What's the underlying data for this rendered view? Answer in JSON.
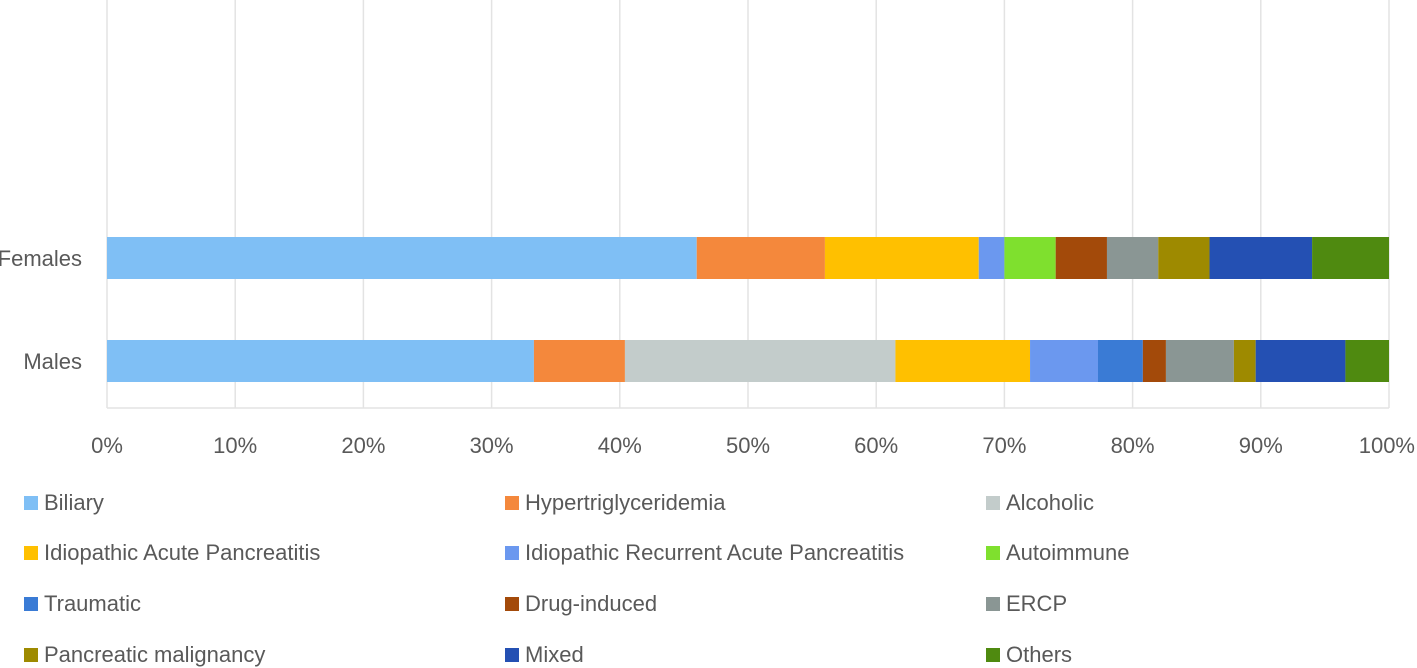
{
  "chart_data": {
    "type": "bar",
    "orientation": "horizontal",
    "stacked": "percent",
    "categories": [
      "Females",
      "Males"
    ],
    "series": [
      {
        "name": "Biliary",
        "color": "#7fbff5",
        "values": [
          46,
          33.3
        ]
      },
      {
        "name": "Hypertriglyceridemia",
        "color": "#f4883c",
        "values": [
          10,
          7.1
        ]
      },
      {
        "name": "Alcoholic",
        "color": "#c3cccb",
        "values": [
          0,
          21.1
        ]
      },
      {
        "name": "Idiopathic Acute Pancreatitis",
        "color": "#ffc000",
        "values": [
          12,
          10.5
        ]
      },
      {
        "name": "Idiopathic Recurrent Acute Pancreatitis",
        "color": "#6b98ef",
        "values": [
          2,
          5.3
        ]
      },
      {
        "name": "Autoimmune",
        "color": "#7fe02e",
        "values": [
          4,
          0
        ]
      },
      {
        "name": "Traumatic",
        "color": "#3a7bd5",
        "values": [
          0,
          3.5
        ]
      },
      {
        "name": "Drug-induced",
        "color": "#a34a0a",
        "values": [
          4,
          1.8
        ]
      },
      {
        "name": "ERCP",
        "color": "#8a9694",
        "values": [
          4,
          5.3
        ]
      },
      {
        "name": "Pancreatic malignancy",
        "color": "#9e8a00",
        "values": [
          4,
          1.7
        ]
      },
      {
        "name": "Mixed",
        "color": "#2450b3",
        "values": [
          8,
          7.0
        ]
      },
      {
        "name": "Others",
        "color": "#4f8a10",
        "values": [
          6,
          3.4
        ]
      }
    ],
    "x_ticks": [
      "0%",
      "10%",
      "20%",
      "30%",
      "40%",
      "50%",
      "60%",
      "70%",
      "80%",
      "90%",
      "100%"
    ],
    "xlim": [
      0,
      100
    ],
    "grid": true,
    "legend_position": "bottom"
  }
}
